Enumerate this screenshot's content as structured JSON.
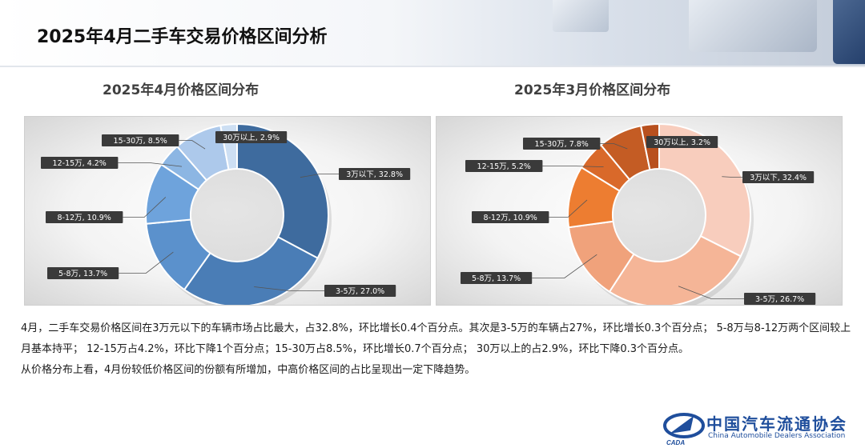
{
  "page": {
    "title": "2025年4月二手车交易价格区间分析",
    "paragraph1": "4月，二手车交易价格区间在3万元以下的车辆市场占比最大，占32.8%，环比增长0.4个百分点。其次是3-5万的车辆占27%，环比增长0.3个百分点；  5-8万与8-12万两个区间较上月基本持平；  12-15万占4.2%，环比下降1个百分点；15-30万占8.5%，环比增长0.7个百分点；  30万以上的占2.9%，环比下降0.3个百分点。",
    "paragraph2": "从价格分布上看，4月份较低价格区间的份额有所增加，中高价格区间的占比呈现出一定下降趋势。"
  },
  "logo": {
    "name_cn": "中国汽车流通协会",
    "name_en": "China Automobile Dealers Association",
    "mark_text": "CADA"
  },
  "chart_data": [
    {
      "type": "pie",
      "title": "2025年4月价格区间分布",
      "categories": [
        "3万以下",
        "3-5万",
        "5-8万",
        "8-12万",
        "12-15万",
        "15-30万",
        "30万以上"
      ],
      "values": [
        32.8,
        27.0,
        13.7,
        10.9,
        4.2,
        8.5,
        2.9
      ],
      "labels": [
        "3万以下, 32.8%",
        "3-5万, 27.0%",
        "5-8万, 13.7%",
        "8-12万, 10.9%",
        "12-15万, 4.2%",
        "15-30万, 8.5%",
        "30万以上, 2.9%"
      ],
      "colors": [
        "#3e6b9e",
        "#4a7db6",
        "#5b91cc",
        "#6ea3dc",
        "#8cb6e3",
        "#adc9eb",
        "#cddff3"
      ],
      "donut": true,
      "legend": "none"
    },
    {
      "type": "pie",
      "title": "2025年3月价格区间分布",
      "categories": [
        "3万以下",
        "3-5万",
        "5-8万",
        "8-12万",
        "12-15万",
        "15-30万",
        "30万以上"
      ],
      "values": [
        32.4,
        26.7,
        13.7,
        10.9,
        5.2,
        7.8,
        3.2
      ],
      "labels": [
        "3万以下, 32.4%",
        "3-5万, 26.7%",
        "5-8万, 13.7%",
        "8-12万, 10.9%",
        "12-15万, 5.2%",
        "15-30万, 7.8%",
        "30万以上, 3.2%"
      ],
      "colors": [
        "#f8cdbd",
        "#f5b597",
        "#f0a27b",
        "#ed7d31",
        "#d9692a",
        "#c45c24",
        "#b8501e"
      ],
      "donut": true,
      "legend": "none"
    }
  ]
}
